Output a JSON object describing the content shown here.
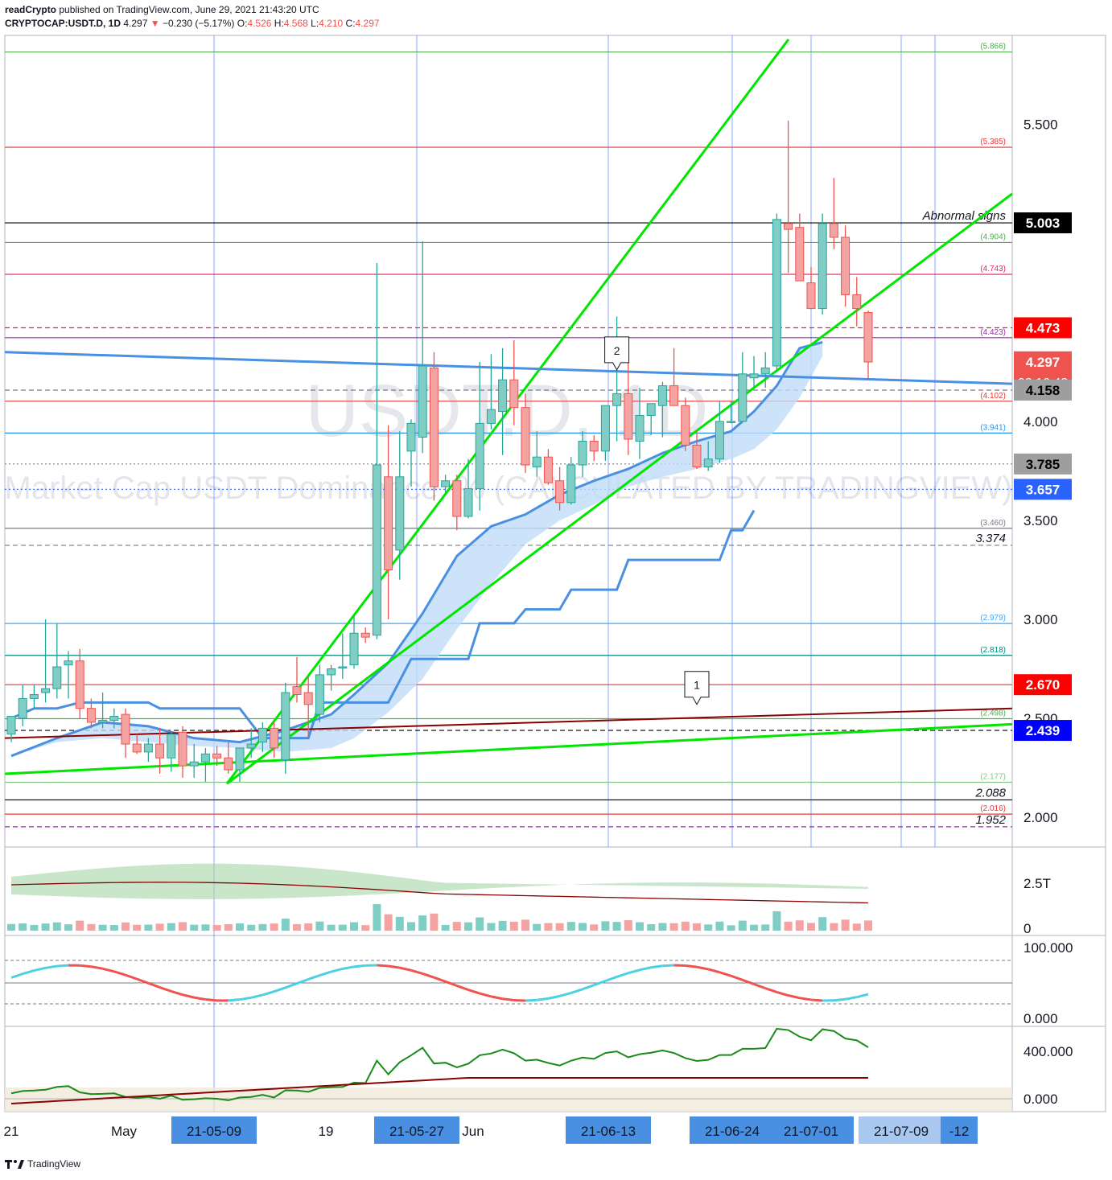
{
  "header": {
    "publisher": "readCrypto",
    "published_text": " published on TradingView.com, June 29, 2021 21:43:20 UTC",
    "symbol": "CRYPTOCAP:USDT.D, 1D",
    "last": "4.297",
    "change": "−0.230 (−5.17%)",
    "o_label": "O:",
    "o": "4.526",
    "h_label": "H:",
    "h": "4.568",
    "l_label": "L:",
    "l": "4.210",
    "c_label": "C:",
    "c": "4.297"
  },
  "watermark": {
    "line1": "USDT.D, 1D",
    "line2": "Market Cap USDT Dominance, % (CALCULATED BY TRADINGVIEW)"
  },
  "footer": {
    "brand": "TradingView"
  },
  "colors": {
    "up": "#26a69a",
    "down": "#ef5350",
    "trend_green": "#00e600",
    "cloud_blue": "#4a90e2",
    "cloud_fill": "#bfdcf7",
    "grid_blue": "#2962ff"
  },
  "chart_data": {
    "type": "candlestick",
    "title": "USDT.D, 1D",
    "ylim": [
      1.85,
      5.95
    ],
    "y_ticks": [
      "5.500",
      "5.000",
      "4.500",
      "4.000",
      "3.500",
      "3.000",
      "2.500",
      "2.000"
    ],
    "y_tick_values": [
      5.5,
      5.0,
      4.5,
      4.0,
      3.5,
      3.0,
      2.5,
      2.0
    ],
    "x_labels": [
      "21",
      "May",
      "21-05-09",
      "19",
      "21-05-27",
      "Jun",
      "21-06-13",
      "21-06-24",
      "21-07-01",
      "21-07-09",
      "-12"
    ],
    "x_label_highlight": [
      false,
      false,
      true,
      false,
      true,
      false,
      true,
      true,
      true,
      true,
      true
    ],
    "candles": [
      {
        "o": 2.42,
        "h": 2.48,
        "l": 2.38,
        "c": 2.51
      },
      {
        "o": 2.5,
        "h": 2.67,
        "l": 2.46,
        "c": 2.6
      },
      {
        "o": 2.6,
        "h": 2.67,
        "l": 2.55,
        "c": 2.62
      },
      {
        "o": 2.63,
        "h": 3.0,
        "l": 2.58,
        "c": 2.65
      },
      {
        "o": 2.65,
        "h": 2.98,
        "l": 2.6,
        "c": 2.76
      },
      {
        "o": 2.77,
        "h": 2.84,
        "l": 2.6,
        "c": 2.79
      },
      {
        "o": 2.79,
        "h": 2.85,
        "l": 2.5,
        "c": 2.55
      },
      {
        "o": 2.55,
        "h": 2.6,
        "l": 2.45,
        "c": 2.48
      },
      {
        "o": 2.48,
        "h": 2.63,
        "l": 2.45,
        "c": 2.49
      },
      {
        "o": 2.49,
        "h": 2.55,
        "l": 2.45,
        "c": 2.51
      },
      {
        "o": 2.52,
        "h": 2.55,
        "l": 2.3,
        "c": 2.37
      },
      {
        "o": 2.37,
        "h": 2.42,
        "l": 2.32,
        "c": 2.33
      },
      {
        "o": 2.33,
        "h": 2.4,
        "l": 2.28,
        "c": 2.37
      },
      {
        "o": 2.37,
        "h": 2.45,
        "l": 2.22,
        "c": 2.3
      },
      {
        "o": 2.3,
        "h": 2.43,
        "l": 2.23,
        "c": 2.42
      },
      {
        "o": 2.43,
        "h": 2.46,
        "l": 2.2,
        "c": 2.26
      },
      {
        "o": 2.26,
        "h": 2.37,
        "l": 2.2,
        "c": 2.28
      },
      {
        "o": 2.28,
        "h": 2.35,
        "l": 2.18,
        "c": 2.32
      },
      {
        "o": 2.32,
        "h": 2.36,
        "l": 2.26,
        "c": 2.3
      },
      {
        "o": 2.3,
        "h": 2.38,
        "l": 2.22,
        "c": 2.24
      },
      {
        "o": 2.24,
        "h": 2.35,
        "l": 2.18,
        "c": 2.35
      },
      {
        "o": 2.35,
        "h": 2.45,
        "l": 2.3,
        "c": 2.37
      },
      {
        "o": 2.38,
        "h": 2.48,
        "l": 2.33,
        "c": 2.45
      },
      {
        "o": 2.45,
        "h": 2.48,
        "l": 2.3,
        "c": 2.35
      },
      {
        "o": 2.29,
        "h": 2.68,
        "l": 2.22,
        "c": 2.63
      },
      {
        "o": 2.66,
        "h": 2.81,
        "l": 2.58,
        "c": 2.62
      },
      {
        "o": 2.63,
        "h": 2.71,
        "l": 2.4,
        "c": 2.57
      },
      {
        "o": 2.52,
        "h": 2.77,
        "l": 2.48,
        "c": 2.72
      },
      {
        "o": 2.72,
        "h": 2.77,
        "l": 2.64,
        "c": 2.75
      },
      {
        "o": 2.76,
        "h": 2.93,
        "l": 2.7,
        "c": 2.76
      },
      {
        "o": 2.77,
        "h": 3.02,
        "l": 2.75,
        "c": 2.93
      },
      {
        "o": 2.93,
        "h": 2.96,
        "l": 2.88,
        "c": 2.91
      },
      {
        "o": 2.92,
        "h": 4.8,
        "l": 2.9,
        "c": 3.78
      },
      {
        "o": 3.72,
        "h": 3.98,
        "l": 3.0,
        "c": 3.25
      },
      {
        "o": 3.35,
        "h": 3.95,
        "l": 3.2,
        "c": 3.72
      },
      {
        "o": 3.85,
        "h": 4.01,
        "l": 3.67,
        "c": 3.99
      },
      {
        "o": 3.92,
        "h": 4.91,
        "l": 3.84,
        "c": 4.28
      },
      {
        "o": 4.27,
        "h": 4.35,
        "l": 3.6,
        "c": 3.67
      },
      {
        "o": 3.67,
        "h": 3.73,
        "l": 3.64,
        "c": 3.7
      },
      {
        "o": 3.7,
        "h": 3.73,
        "l": 3.45,
        "c": 3.52
      },
      {
        "o": 3.52,
        "h": 3.81,
        "l": 3.51,
        "c": 3.66
      },
      {
        "o": 3.66,
        "h": 4.3,
        "l": 3.55,
        "c": 3.99
      },
      {
        "o": 3.99,
        "h": 4.34,
        "l": 3.96,
        "c": 4.06
      },
      {
        "o": 4.05,
        "h": 4.37,
        "l": 3.83,
        "c": 4.21
      },
      {
        "o": 4.21,
        "h": 4.41,
        "l": 3.98,
        "c": 4.07
      },
      {
        "o": 4.07,
        "h": 4.14,
        "l": 3.74,
        "c": 3.78
      },
      {
        "o": 3.77,
        "h": 3.95,
        "l": 3.72,
        "c": 3.82
      },
      {
        "o": 3.82,
        "h": 3.86,
        "l": 3.68,
        "c": 3.69
      },
      {
        "o": 3.7,
        "h": 3.77,
        "l": 3.55,
        "c": 3.59
      },
      {
        "o": 3.59,
        "h": 3.82,
        "l": 3.58,
        "c": 3.78
      },
      {
        "o": 3.78,
        "h": 3.95,
        "l": 3.72,
        "c": 3.9
      },
      {
        "o": 3.9,
        "h": 3.93,
        "l": 3.8,
        "c": 3.85
      },
      {
        "o": 3.85,
        "h": 4.05,
        "l": 3.8,
        "c": 4.08
      },
      {
        "o": 4.08,
        "h": 4.53,
        "l": 3.9,
        "c": 4.14
      },
      {
        "o": 4.14,
        "h": 4.3,
        "l": 3.83,
        "c": 3.91
      },
      {
        "o": 3.9,
        "h": 4.17,
        "l": 3.81,
        "c": 4.03
      },
      {
        "o": 4.03,
        "h": 4.09,
        "l": 3.93,
        "c": 4.09
      },
      {
        "o": 4.08,
        "h": 4.2,
        "l": 3.92,
        "c": 4.18
      },
      {
        "o": 4.18,
        "h": 4.37,
        "l": 4.12,
        "c": 4.08
      },
      {
        "o": 4.08,
        "h": 4.12,
        "l": 3.85,
        "c": 3.88
      },
      {
        "o": 3.88,
        "h": 3.95,
        "l": 3.76,
        "c": 3.77
      },
      {
        "o": 3.77,
        "h": 3.9,
        "l": 3.75,
        "c": 3.81
      },
      {
        "o": 3.81,
        "h": 4.1,
        "l": 3.79,
        "c": 4.0
      },
      {
        "o": 4.0,
        "h": 4.1,
        "l": 3.99,
        "c": 4.0
      },
      {
        "o": 4.0,
        "h": 4.35,
        "l": 4.0,
        "c": 4.24
      },
      {
        "o": 4.22,
        "h": 4.33,
        "l": 4.17,
        "c": 4.24
      },
      {
        "o": 4.24,
        "h": 4.35,
        "l": 4.17,
        "c": 4.27
      },
      {
        "o": 4.28,
        "h": 5.05,
        "l": 4.25,
        "c": 5.02
      },
      {
        "o": 5.0,
        "h": 5.52,
        "l": 4.75,
        "c": 4.97
      },
      {
        "o": 4.98,
        "h": 5.05,
        "l": 4.73,
        "c": 4.71
      },
      {
        "o": 4.7,
        "h": 4.78,
        "l": 4.57,
        "c": 4.57
      },
      {
        "o": 4.57,
        "h": 5.05,
        "l": 4.54,
        "c": 5.0
      },
      {
        "o": 5.0,
        "h": 5.23,
        "l": 4.87,
        "c": 4.93
      },
      {
        "o": 4.93,
        "h": 4.99,
        "l": 4.58,
        "c": 4.64
      },
      {
        "o": 4.64,
        "h": 4.73,
        "l": 4.48,
        "c": 4.57
      },
      {
        "o": 4.55,
        "h": 4.56,
        "l": 4.21,
        "c": 4.3
      }
    ],
    "cloud_upper": [
      [
        0,
        2.31
      ],
      [
        4,
        2.4
      ],
      [
        8,
        2.48
      ],
      [
        12,
        2.46
      ],
      [
        16,
        2.4
      ],
      [
        20,
        2.38
      ],
      [
        24,
        2.44
      ],
      [
        28,
        2.52
      ],
      [
        30,
        2.62
      ],
      [
        33,
        2.78
      ],
      [
        36,
        3.03
      ],
      [
        39,
        3.32
      ],
      [
        42,
        3.47
      ],
      [
        45,
        3.53
      ],
      [
        48,
        3.63
      ],
      [
        51,
        3.7
      ],
      [
        54,
        3.76
      ],
      [
        57,
        3.84
      ],
      [
        60,
        3.9
      ],
      [
        63,
        3.95
      ],
      [
        65,
        4.05
      ],
      [
        67,
        4.18
      ],
      [
        69,
        4.37
      ],
      [
        71,
        4.4
      ]
    ],
    "cloud_lower": [
      [
        0,
        2.31
      ],
      [
        4,
        2.38
      ],
      [
        8,
        2.4
      ],
      [
        12,
        2.38
      ],
      [
        16,
        2.36
      ],
      [
        20,
        2.35
      ],
      [
        24,
        2.33
      ],
      [
        28,
        2.35
      ],
      [
        30,
        2.4
      ],
      [
        33,
        2.53
      ],
      [
        36,
        2.7
      ],
      [
        39,
        2.95
      ],
      [
        42,
        3.18
      ],
      [
        45,
        3.38
      ],
      [
        48,
        3.5
      ],
      [
        51,
        3.58
      ],
      [
        54,
        3.67
      ],
      [
        57,
        3.72
      ],
      [
        60,
        3.76
      ],
      [
        63,
        3.81
      ],
      [
        65,
        3.86
      ],
      [
        67,
        3.96
      ],
      [
        69,
        4.12
      ],
      [
        71,
        4.33
      ]
    ],
    "baseline_step": [
      [
        0,
        2.5
      ],
      [
        2,
        2.55
      ],
      [
        4,
        2.55
      ],
      [
        6,
        2.58
      ],
      [
        12,
        2.58
      ],
      [
        13,
        2.55
      ],
      [
        20,
        2.55
      ],
      [
        22,
        2.4
      ],
      [
        26,
        2.4
      ],
      [
        27,
        2.58
      ],
      [
        33,
        2.58
      ],
      [
        35,
        2.8
      ],
      [
        40,
        2.8
      ],
      [
        41,
        2.98
      ],
      [
        44,
        2.98
      ],
      [
        45,
        3.05
      ],
      [
        48,
        3.05
      ],
      [
        49,
        3.15
      ],
      [
        53,
        3.15
      ],
      [
        54,
        3.3
      ],
      [
        62,
        3.3
      ],
      [
        63,
        3.45
      ],
      [
        64,
        3.45
      ],
      [
        65,
        3.55
      ]
    ],
    "h_levels": [
      {
        "value": 5.866,
        "label": "(5.866)",
        "color": "#4caf50",
        "style": "solid"
      },
      {
        "value": 5.385,
        "label": "(5.385)",
        "color": "#e53935",
        "style": "solid"
      },
      {
        "value": 5.003,
        "label": "Abnormal signs",
        "color": "#000000",
        "style": "solid"
      },
      {
        "value": 4.904,
        "label": "(4.904)",
        "color": "#4caf50",
        "style": "solid"
      },
      {
        "value": 4.743,
        "label": "(4.743)",
        "color": "#e91e63",
        "style": "solid"
      },
      {
        "value": 4.473,
        "label": "",
        "color": "#e91e63",
        "style": "dashed"
      },
      {
        "value": 4.423,
        "label": "(4.423)",
        "color": "#9c27b0",
        "style": "solid"
      },
      {
        "value": 4.158,
        "label": "",
        "color": "#787b86",
        "style": "dashed"
      },
      {
        "value": 4.102,
        "label": "(4.102)",
        "color": "#e53935",
        "style": "solid"
      },
      {
        "value": 3.941,
        "label": "(3.941)",
        "color": "#2196f3",
        "style": "solid"
      },
      {
        "value": 3.785,
        "label": "",
        "color": "#787b86",
        "style": "dotted"
      },
      {
        "value": 3.657,
        "label": "",
        "color": "#2962ff",
        "style": "dotted"
      },
      {
        "value": 3.46,
        "label": "(3.460)",
        "color": "#787b86",
        "style": "solid"
      },
      {
        "value": 3.374,
        "label": "3.374",
        "color": "#787b86",
        "style": "dashed"
      },
      {
        "value": 2.979,
        "label": "(2.979)",
        "color": "#42a5f5",
        "style": "solid"
      },
      {
        "value": 2.818,
        "label": "(2.818)",
        "color": "#00897b",
        "style": "solid"
      },
      {
        "value": 2.67,
        "label": "",
        "color": "#e53935",
        "style": "solid"
      },
      {
        "value": 2.498,
        "label": "(2.498)",
        "color": "#4caf50",
        "style": "solid"
      },
      {
        "value": 2.439,
        "label": "",
        "color": "#000000",
        "style": "dashed"
      },
      {
        "value": 2.177,
        "label": "(2.177)",
        "color": "#81c784",
        "style": "solid"
      },
      {
        "value": 2.088,
        "label": "2.088",
        "color": "#000000",
        "style": "solid"
      },
      {
        "value": 2.016,
        "label": "(2.016)",
        "color": "#e53935",
        "style": "solid"
      },
      {
        "value": 1.952,
        "label": "1.952",
        "color": "#9c27b0",
        "style": "dashed"
      }
    ],
    "price_tags": [
      {
        "value": 5.003,
        "label": "5.003",
        "bg": "#000000",
        "fg": "#ffffff"
      },
      {
        "value": 4.473,
        "label": "4.473",
        "bg": "#ff0000",
        "fg": "#ffffff"
      },
      {
        "value": 4.297,
        "label": "4.297",
        "sub": "02:16:42",
        "bg": "#ef5350",
        "fg": "#ffffff"
      },
      {
        "value": 4.158,
        "label": "4.158",
        "bg": "#9e9e9e",
        "fg": "#000000"
      },
      {
        "value": 3.785,
        "label": "3.785",
        "bg": "#9e9e9e",
        "fg": "#000000"
      },
      {
        "value": 3.657,
        "label": "3.657",
        "bg": "#2962ff",
        "fg": "#ffffff"
      },
      {
        "value": 2.67,
        "label": "2.670",
        "bg": "#ff0000",
        "fg": "#ffffff"
      },
      {
        "value": 2.439,
        "label": "2.439",
        "bg": "#0000ff",
        "fg": "#ffffff"
      }
    ],
    "markers": [
      {
        "label": "1",
        "bar": 60,
        "value": 2.55
      },
      {
        "label": "2",
        "bar": 53,
        "value": 4.24
      }
    ],
    "volume_panel": {
      "y_ticks": [
        "2.5T",
        "0"
      ]
    },
    "stoch_panel": {
      "y_ticks": [
        "100.000",
        "0.000"
      ]
    },
    "macd_panel": {
      "y_ticks": [
        "400.000",
        "0.000"
      ]
    }
  }
}
